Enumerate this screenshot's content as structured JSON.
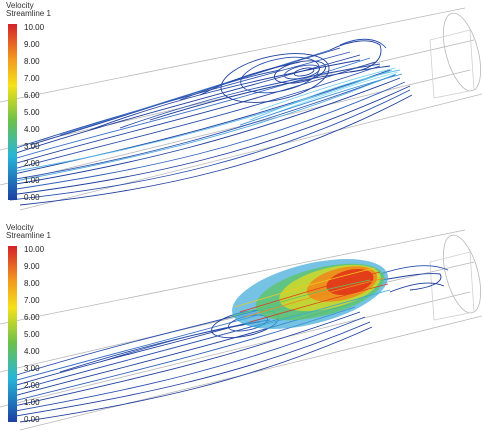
{
  "panels": [
    {
      "legend": {
        "title": "Velocity",
        "subtitle": "Streamline 1",
        "ticks": [
          "10.00",
          "9.00",
          "8.00",
          "7.00",
          "6.00",
          "5.00",
          "4.00",
          "3.00",
          "2.00",
          "1.00",
          "0.00"
        ]
      },
      "colors": {
        "low": "#1f3f9e",
        "mid": "#3a7fd0",
        "high": "#7fd0f0",
        "hot": "#e33a1a"
      }
    },
    {
      "legend": {
        "title": "Velocity",
        "subtitle": "Streamline 1",
        "ticks": [
          "10.00",
          "9.00",
          "8.00",
          "7.00",
          "6.00",
          "5.00",
          "4.00",
          "3.00",
          "2.00",
          "1.00",
          "0.00"
        ]
      },
      "colors": {
        "low": "#1f3f9e",
        "mid": "#3a7fd0",
        "high": "#7fd0f0",
        "hot": "#e33a1a"
      }
    }
  ]
}
